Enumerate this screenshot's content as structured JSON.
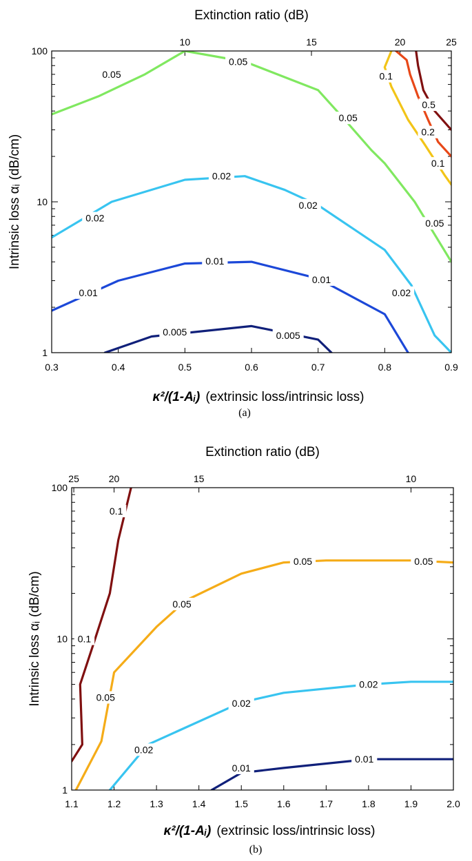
{
  "chart_data": [
    {
      "type": "contour",
      "caption": "(a)",
      "x": {
        "label_sym": "κ²/(1-Aᵢ)",
        "label_text": "(extrinsic loss/intrinsic loss)",
        "range": [
          0.3,
          0.9
        ],
        "ticks": [
          0.3,
          0.4,
          0.5,
          0.6,
          0.7,
          0.8,
          0.9
        ],
        "tick_labels": [
          "0.3",
          "0.4",
          "0.5",
          "0.6",
          "0.7",
          "0.8",
          "0.9"
        ]
      },
      "y": {
        "label_text": "Intrinsic loss αᵢ",
        "label_unit": "(dB/cm)",
        "scale": "log",
        "range": [
          1,
          100
        ],
        "ticks": [
          1,
          10,
          100
        ],
        "tick_labels": [
          "1",
          "10",
          "100"
        ]
      },
      "x2": {
        "label": "Extinction ratio (dB)",
        "tick_labels": [
          "10",
          "15",
          "20",
          "25"
        ],
        "tick_positions_x": [
          0.5,
          0.69,
          0.823,
          0.9
        ]
      },
      "contours": [
        {
          "level": "0.05",
          "color": "#80e860",
          "points": [
            [
              0.3,
              38
            ],
            [
              0.37,
              50
            ],
            [
              0.44,
              70
            ],
            [
              0.5,
              100
            ],
            [
              0.59,
              85
            ],
            [
              0.7,
              55
            ],
            [
              0.74,
              35
            ],
            [
              0.78,
              22
            ],
            [
              0.8,
              18
            ],
            [
              0.845,
              10
            ],
            [
              0.9,
              4
            ]
          ],
          "labels": [
            {
              "x": 0.39,
              "y": 70,
              "text": "0.05"
            },
            {
              "x": 0.58,
              "y": 85,
              "text": "0.05"
            },
            {
              "x": 0.745,
              "y": 36,
              "text": "0.05"
            },
            {
              "x": 0.875,
              "y": 7.2,
              "text": "0.05"
            }
          ]
        },
        {
          "level": "0.1",
          "color": "#f2c418",
          "points": [
            [
              0.81,
              100
            ],
            [
              0.8,
              78
            ],
            [
              0.81,
              58
            ],
            [
              0.835,
              35
            ],
            [
              0.86,
              24
            ],
            [
              0.89,
              15
            ],
            [
              0.9,
              13
            ]
          ],
          "labels": [
            {
              "x": 0.802,
              "y": 68,
              "text": "0.1"
            },
            {
              "x": 0.88,
              "y": 18,
              "text": "0.1"
            }
          ]
        },
        {
          "level": "0.2",
          "color": "#e84818",
          "points": [
            [
              0.817,
              100
            ],
            [
              0.833,
              87
            ],
            [
              0.838,
              70
            ],
            [
              0.85,
              50
            ],
            [
              0.865,
              35
            ],
            [
              0.88,
              25
            ],
            [
              0.9,
              20
            ]
          ],
          "labels": [
            {
              "x": 0.865,
              "y": 29,
              "text": "0.2"
            }
          ]
        },
        {
          "level": "0.5",
          "color": "#801010",
          "points": [
            [
              0.847,
              100
            ],
            [
              0.85,
              80
            ],
            [
              0.858,
              55
            ],
            [
              0.875,
              40
            ],
            [
              0.9,
              30
            ]
          ],
          "labels": [
            {
              "x": 0.866,
              "y": 44,
              "text": "0.5"
            }
          ]
        },
        {
          "level": "0.02",
          "color": "#38c4f0",
          "points": [
            [
              0.3,
              5.8
            ],
            [
              0.39,
              10
            ],
            [
              0.5,
              14
            ],
            [
              0.59,
              14.8
            ],
            [
              0.65,
              12
            ],
            [
              0.7,
              9.5
            ],
            [
              0.8,
              4.8
            ],
            [
              0.84,
              2.8
            ],
            [
              0.875,
              1.3
            ],
            [
              0.9,
              1
            ]
          ],
          "labels": [
            {
              "x": 0.365,
              "y": 7.8,
              "text": "0.02"
            },
            {
              "x": 0.555,
              "y": 14.8,
              "text": "0.02"
            },
            {
              "x": 0.685,
              "y": 9.5,
              "text": "0.02"
            },
            {
              "x": 0.825,
              "y": 2.5,
              "text": "0.02"
            }
          ]
        },
        {
          "level": "0.01",
          "color": "#1c48d8",
          "points": [
            [
              0.3,
              1.9
            ],
            [
              0.4,
              3
            ],
            [
              0.5,
              3.9
            ],
            [
              0.6,
              4
            ],
            [
              0.7,
              3.1
            ],
            [
              0.8,
              1.8
            ],
            [
              0.835,
              1
            ]
          ],
          "labels": [
            {
              "x": 0.355,
              "y": 2.5,
              "text": "0.01"
            },
            {
              "x": 0.545,
              "y": 4.05,
              "text": "0.01"
            },
            {
              "x": 0.705,
              "y": 3.05,
              "text": "0.01"
            }
          ]
        },
        {
          "level": "0.005",
          "color": "#10207a",
          "points": [
            [
              0.38,
              1
            ],
            [
              0.45,
              1.28
            ],
            [
              0.6,
              1.5
            ],
            [
              0.7,
              1.22
            ],
            [
              0.72,
              1
            ]
          ],
          "labels": [
            {
              "x": 0.485,
              "y": 1.37,
              "text": "0.005"
            },
            {
              "x": 0.655,
              "y": 1.3,
              "text": "0.005"
            }
          ]
        }
      ]
    },
    {
      "type": "contour",
      "caption": "(b)",
      "x": {
        "label_sym": "κ²/(1-Aᵢ)",
        "label_text": "(extrinsic loss/intrinsic loss)",
        "range": [
          1.1,
          2.0
        ],
        "ticks": [
          1.1,
          1.2,
          1.3,
          1.4,
          1.5,
          1.6,
          1.7,
          1.8,
          1.9,
          2.0
        ],
        "tick_labels": [
          "1.1",
          "1.2",
          "1.3",
          "1.4",
          "1.5",
          "1.6",
          "1.7",
          "1.8",
          "1.9",
          "2.0"
        ]
      },
      "y": {
        "label_text": "Intrinsic loss αᵢ",
        "label_unit": "(dB/cm)",
        "scale": "log",
        "range": [
          1,
          100
        ],
        "ticks": [
          1,
          10,
          100
        ],
        "tick_labels": [
          "1",
          "10",
          "100"
        ]
      },
      "x2": {
        "label": "Extinction ratio (dB)",
        "tick_labels": [
          "25",
          "20",
          "15",
          "10"
        ],
        "tick_positions_x": [
          1.105,
          1.2,
          1.4,
          1.9
        ]
      },
      "contours": [
        {
          "level": "0.1",
          "color": "#801010",
          "points": [
            [
              1.24,
              100
            ],
            [
              1.21,
              45
            ],
            [
              1.19,
              20
            ],
            [
              1.15,
              9
            ],
            [
              1.12,
              5
            ],
            [
              1.125,
              2
            ],
            [
              1.1,
              1.55
            ]
          ],
          "labels": [
            {
              "x": 1.205,
              "y": 70,
              "text": "0.1"
            },
            {
              "x": 1.13,
              "y": 10,
              "text": "0.1"
            }
          ]
        },
        {
          "level": "0.05",
          "color": "#f5ac18",
          "points": [
            [
              1.11,
              1
            ],
            [
              1.17,
              2.1
            ],
            [
              1.2,
              6
            ],
            [
              1.3,
              12
            ],
            [
              1.37,
              18
            ],
            [
              1.5,
              27
            ],
            [
              1.6,
              32
            ],
            [
              1.7,
              33
            ],
            [
              1.8,
              33
            ],
            [
              1.9,
              33
            ],
            [
              2.0,
              32
            ]
          ],
          "labels": [
            {
              "x": 1.18,
              "y": 4.1,
              "text": "0.05"
            },
            {
              "x": 1.36,
              "y": 17,
              "text": "0.05"
            },
            {
              "x": 1.645,
              "y": 32.5,
              "text": "0.05"
            },
            {
              "x": 1.93,
              "y": 32.5,
              "text": "0.05"
            }
          ]
        },
        {
          "level": "0.02",
          "color": "#38c4f0",
          "points": [
            [
              1.19,
              1
            ],
            [
              1.28,
              2
            ],
            [
              1.5,
              3.8
            ],
            [
              1.6,
              4.4
            ],
            [
              1.8,
              5
            ],
            [
              1.9,
              5.2
            ],
            [
              2.0,
              5.2
            ]
          ],
          "labels": [
            {
              "x": 1.27,
              "y": 1.85,
              "text": "0.02"
            },
            {
              "x": 1.5,
              "y": 3.75,
              "text": "0.02"
            },
            {
              "x": 1.8,
              "y": 5,
              "text": "0.02"
            }
          ]
        },
        {
          "level": "0.01",
          "color": "#10207a",
          "points": [
            [
              1.43,
              1
            ],
            [
              1.5,
              1.3
            ],
            [
              1.6,
              1.4
            ],
            [
              1.8,
              1.6
            ],
            [
              2.0,
              1.6
            ]
          ],
          "labels": [
            {
              "x": 1.5,
              "y": 1.4,
              "text": "0.01"
            },
            {
              "x": 1.79,
              "y": 1.6,
              "text": "0.01"
            }
          ]
        }
      ]
    }
  ]
}
